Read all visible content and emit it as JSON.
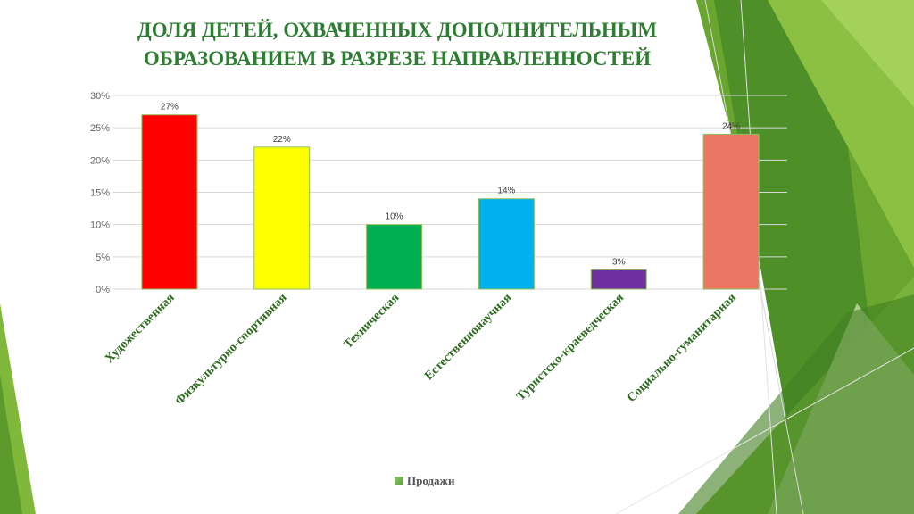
{
  "title": {
    "line1": "ДОЛЯ ДЕТЕЙ, ОХВАЧЕННЫХ ДОПОЛНИТЕЛЬНЫМ",
    "line2": "ОБРАЗОВАНИЕМ В РАЗРЕЗЕ НАПРАВЛЕННОСТЕЙ"
  },
  "legend": {
    "label": "Продажи"
  },
  "chart_data": {
    "type": "bar",
    "title": "ДОЛЯ ДЕТЕЙ, ОХВАЧЕННЫХ ДОПОЛНИТЕЛЬНЫМ ОБРАЗОВАНИЕМ В РАЗРЕЗЕ НАПРАВЛЕННОСТЕЙ",
    "categories": [
      "Художественная",
      "Физкультурно-спортивная",
      "Техническая",
      "Естественнонаучная",
      "Туристско-краеведческая",
      "Социально-гуманитарная"
    ],
    "series": [
      {
        "name": "Продажи",
        "values": [
          27,
          22,
          10,
          14,
          3,
          24
        ]
      }
    ],
    "data_labels": [
      "27%",
      "22%",
      "10%",
      "14%",
      "3%",
      "24%"
    ],
    "colors": [
      "#ff0000",
      "#ffff00",
      "#00b050",
      "#00b0f0",
      "#7030a0",
      "#ec7665"
    ],
    "ylim": [
      0,
      30
    ],
    "yticks": [
      "0%",
      "5%",
      "10%",
      "15%",
      "20%",
      "25%",
      "30%"
    ],
    "grid": true,
    "legend_position": "bottom",
    "xlabel": "",
    "ylabel": ""
  }
}
